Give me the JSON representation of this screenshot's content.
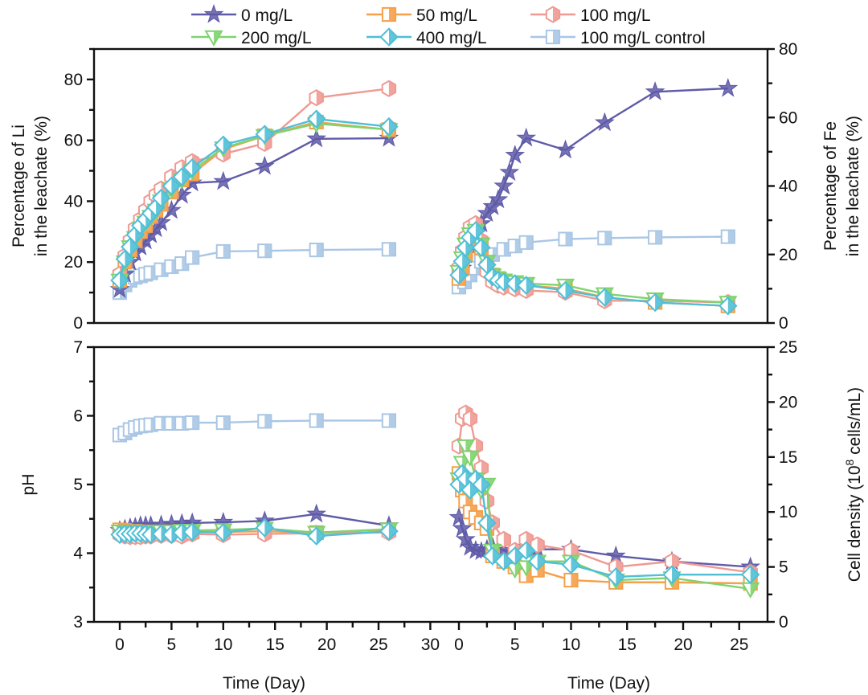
{
  "legend": [
    {
      "name": "0 mg/L",
      "color": "#5F5BA8",
      "marker": "star"
    },
    {
      "name": "50 mg/L",
      "color": "#F5A04A",
      "marker": "square-half"
    },
    {
      "name": "100 mg/L",
      "color": "#EE9A92",
      "marker": "hexagon-half"
    },
    {
      "name": "200 mg/L",
      "color": "#7FD36E",
      "marker": "triangle-down-half"
    },
    {
      "name": "400 mg/L",
      "color": "#4FBFD6",
      "marker": "diamond-half"
    },
    {
      "name": "100 mg/L control",
      "color": "#A9C6E4",
      "marker": "square-half"
    }
  ],
  "chart_data": [
    {
      "id": "li",
      "type": "line",
      "title": "",
      "xlabel": "Time (Day)",
      "ylabel": "Percentage of Li\nin the leachate (%)",
      "xlim": [
        -2.5,
        30
      ],
      "ylim": [
        0,
        90
      ],
      "xticks": [
        0,
        5,
        10,
        15,
        20,
        25,
        30
      ],
      "yticks": [
        0,
        20,
        40,
        60,
        80
      ],
      "y_axis_side": "left",
      "series": [
        {
          "name": "0 mg/L",
          "x": [
            0,
            0.5,
            1,
            1.5,
            2,
            2.5,
            3,
            3.5,
            4,
            5,
            6,
            7,
            10,
            14,
            19,
            26
          ],
          "y": [
            11,
            16,
            20,
            23,
            25,
            27,
            29,
            31,
            33,
            37,
            42,
            46,
            46.5,
            51.5,
            60.5,
            60.7
          ]
        },
        {
          "name": "50 mg/L",
          "x": [
            0,
            0.5,
            1,
            1.5,
            2,
            2.5,
            3,
            3.5,
            4,
            5,
            6,
            7,
            10,
            14,
            19,
            26
          ],
          "y": [
            14,
            20,
            24,
            27,
            30,
            32,
            35,
            37,
            39,
            43,
            47,
            49,
            57,
            61.5,
            66,
            63.5
          ]
        },
        {
          "name": "100 mg/L",
          "x": [
            0,
            0.5,
            1,
            1.5,
            2,
            2.5,
            3,
            3.5,
            4,
            5,
            6,
            7,
            10,
            14,
            19,
            26
          ],
          "y": [
            16,
            22,
            27,
            31,
            34,
            37,
            40,
            42,
            44,
            48,
            51,
            53,
            55.5,
            59,
            74,
            77
          ]
        },
        {
          "name": "200 mg/L",
          "x": [
            0,
            0.5,
            1,
            1.5,
            2,
            2.5,
            3,
            3.5,
            4,
            5,
            6,
            7,
            10,
            14,
            19,
            26
          ],
          "y": [
            14,
            20,
            25,
            28,
            31,
            33,
            35,
            37,
            40,
            44,
            47,
            50,
            57.5,
            61.5,
            65.5,
            63.5
          ]
        },
        {
          "name": "400 mg/L",
          "x": [
            0,
            0.5,
            1,
            1.5,
            2,
            2.5,
            3,
            3.5,
            4,
            5,
            6,
            7,
            10,
            14,
            19,
            26
          ],
          "y": [
            14,
            21,
            25,
            29,
            32,
            34,
            36,
            38,
            41,
            45,
            48,
            51,
            58.5,
            62,
            67,
            64.5
          ]
        },
        {
          "name": "100 mg/L control",
          "x": [
            0,
            0.5,
            1,
            1.5,
            2,
            2.5,
            3,
            4,
            5,
            6,
            7,
            10,
            14,
            19,
            26
          ],
          "y": [
            10,
            12.5,
            14,
            15,
            15.5,
            16,
            16.5,
            17.5,
            18.5,
            19.5,
            21.5,
            23.5,
            23.7,
            24,
            24.2
          ]
        }
      ]
    },
    {
      "id": "fe",
      "type": "line",
      "title": "",
      "xlabel": "Time (Day)",
      "ylabel": "Percentage of Fe\nin the leachate (%)",
      "xlim": [
        -1.2,
        27.5
      ],
      "ylim": [
        0,
        80
      ],
      "xticks": [
        0,
        5,
        10,
        15,
        20,
        25
      ],
      "yticks": [
        0,
        20,
        40,
        60,
        80
      ],
      "y_axis_side": "right",
      "series": [
        {
          "name": "0 mg/L",
          "x": [
            0.3,
            0.6,
            1,
            1.5,
            2,
            2.5,
            3,
            3.5,
            4,
            4.5,
            5,
            6,
            9.5,
            13,
            17.5,
            24
          ],
          "y": [
            16,
            20,
            23,
            26,
            29,
            32,
            34,
            36,
            40,
            44,
            49,
            54,
            50.5,
            58.5,
            67.5,
            68.5
          ]
        },
        {
          "name": "50 mg/L",
          "x": [
            0,
            0.3,
            0.6,
            1,
            1.5,
            2,
            2.5,
            3,
            3.5,
            4,
            5,
            6,
            9.5,
            13,
            17.5,
            24
          ],
          "y": [
            13,
            16,
            20,
            24,
            26,
            22,
            16,
            14,
            13,
            12,
            11.5,
            11,
            10,
            7.5,
            6,
            5
          ]
        },
        {
          "name": "100 mg/L",
          "x": [
            0,
            0.3,
            0.6,
            1,
            1.5,
            2,
            2.5,
            3,
            3.5,
            4,
            5,
            6,
            9.5,
            13,
            17.5,
            24
          ],
          "y": [
            16,
            21,
            25,
            28,
            29,
            24,
            15,
            12,
            11,
            10.5,
            10,
            9.5,
            9,
            6.5,
            6.5,
            6
          ]
        },
        {
          "name": "200 mg/L",
          "x": [
            0,
            0.3,
            0.6,
            1,
            1.5,
            2,
            2.5,
            3,
            3.5,
            4,
            5,
            6,
            9.5,
            13,
            17.5,
            24
          ],
          "y": [
            15,
            19,
            23,
            26,
            27,
            23,
            18,
            14,
            13,
            12.5,
            12,
            11.5,
            11,
            8.5,
            7,
            6
          ]
        },
        {
          "name": "400 mg/L",
          "x": [
            0,
            0.3,
            0.6,
            1,
            1.5,
            2,
            2.5,
            3,
            3.5,
            4,
            5,
            6,
            9.5,
            13,
            17.5,
            24
          ],
          "y": [
            14,
            18,
            22,
            25,
            27,
            22,
            17,
            13.5,
            12.5,
            12,
            11.5,
            11,
            9.5,
            7.5,
            6,
            5
          ]
        },
        {
          "name": "100 mg/L control",
          "x": [
            0,
            0.5,
            1,
            1.5,
            2,
            3,
            4,
            5,
            6,
            9.5,
            13,
            17.5,
            24
          ],
          "y": [
            10.5,
            12,
            14,
            16,
            18,
            20,
            21.5,
            22.5,
            23.5,
            24.5,
            24.8,
            25,
            25.2
          ]
        }
      ]
    },
    {
      "id": "ph",
      "type": "line",
      "title": "",
      "xlabel": "Time (Day)",
      "ylabel": "pH",
      "xlim": [
        -2.5,
        30
      ],
      "ylim": [
        3,
        7
      ],
      "xticks": [
        0,
        5,
        10,
        15,
        20,
        25,
        30
      ],
      "yticks": [
        3,
        4,
        5,
        6,
        7
      ],
      "y_axis_side": "left",
      "series": [
        {
          "name": "0 mg/L",
          "x": [
            0,
            0.5,
            1,
            1.5,
            2,
            2.5,
            3,
            4,
            5,
            6,
            7,
            10,
            14,
            19,
            26
          ],
          "y": [
            4.33,
            4.35,
            4.37,
            4.38,
            4.4,
            4.4,
            4.4,
            4.41,
            4.42,
            4.43,
            4.44,
            4.45,
            4.47,
            4.57,
            4.4
          ]
        },
        {
          "name": "50 mg/L",
          "x": [
            0,
            0.5,
            1,
            1.5,
            2,
            2.5,
            3,
            4,
            5,
            6,
            7,
            10,
            14,
            19,
            26
          ],
          "y": [
            4.34,
            4.33,
            4.32,
            4.32,
            4.31,
            4.31,
            4.3,
            4.31,
            4.31,
            4.3,
            4.31,
            4.31,
            4.32,
            4.3,
            4.34
          ]
        },
        {
          "name": "100 mg/L",
          "x": [
            0,
            0.5,
            1,
            1.5,
            2,
            2.5,
            3,
            4,
            5,
            6,
            7,
            10,
            14,
            19,
            26
          ],
          "y": [
            4.27,
            4.25,
            4.24,
            4.24,
            4.24,
            4.25,
            4.25,
            4.26,
            4.26,
            4.25,
            4.28,
            4.27,
            4.28,
            4.29,
            4.3
          ]
        },
        {
          "name": "200 mg/L",
          "x": [
            0,
            0.5,
            1,
            1.5,
            2,
            2.5,
            3,
            4,
            5,
            6,
            7,
            10,
            14,
            19,
            26
          ],
          "y": [
            4.32,
            4.31,
            4.3,
            4.31,
            4.3,
            4.31,
            4.31,
            4.32,
            4.32,
            4.33,
            4.33,
            4.34,
            4.36,
            4.3,
            4.35
          ]
        },
        {
          "name": "400 mg/L",
          "x": [
            0,
            0.5,
            1,
            1.5,
            2,
            2.5,
            3,
            4,
            5,
            6,
            7,
            10,
            14,
            19,
            26
          ],
          "y": [
            4.27,
            4.28,
            4.28,
            4.29,
            4.29,
            4.28,
            4.27,
            4.28,
            4.27,
            4.3,
            4.31,
            4.3,
            4.37,
            4.25,
            4.32
          ]
        },
        {
          "name": "100 mg/L control",
          "x": [
            0,
            0.5,
            1,
            1.5,
            2,
            2.5,
            3,
            4,
            5,
            6,
            7,
            10,
            14,
            19,
            26
          ],
          "y": [
            5.72,
            5.75,
            5.8,
            5.83,
            5.85,
            5.86,
            5.87,
            5.89,
            5.89,
            5.89,
            5.9,
            5.9,
            5.92,
            5.93,
            5.93
          ]
        }
      ]
    },
    {
      "id": "cell",
      "type": "line",
      "title": "",
      "xlabel": "Time (Day)",
      "ylabel": "Cell density (10^8 cells/mL)",
      "xlim": [
        -1.2,
        27.5
      ],
      "ylim": [
        0,
        25
      ],
      "xticks": [
        0,
        5,
        10,
        15,
        20,
        25
      ],
      "yticks": [
        0,
        5,
        10,
        15,
        20,
        25
      ],
      "y_axis_side": "right",
      "series": [
        {
          "name": "0 mg/L",
          "x": [
            0,
            0.3,
            0.6,
            1,
            1.5,
            2,
            2.5,
            3,
            4,
            5,
            6,
            7,
            10,
            14,
            19,
            26
          ],
          "y": [
            9.5,
            8.5,
            7.5,
            6.8,
            6.5,
            6.4,
            6.6,
            6.8,
            6.5,
            6.3,
            6.8,
            6.6,
            6.6,
            6.0,
            5.5,
            5.0
          ]
        },
        {
          "name": "50 mg/L",
          "x": [
            0,
            0.3,
            0.6,
            1,
            1.5,
            2,
            2.5,
            3,
            4,
            5,
            6,
            7,
            10,
            14,
            19,
            26
          ],
          "y": [
            13.5,
            12,
            11,
            10,
            9.5,
            9,
            8.5,
            6,
            5.5,
            5,
            4.2,
            4.7,
            3.8,
            3.6,
            3.6,
            3.5
          ]
        },
        {
          "name": "100 mg/L",
          "x": [
            0,
            0.3,
            0.6,
            1,
            1.5,
            2,
            2.5,
            3,
            4,
            5,
            6,
            7,
            10,
            14,
            19,
            26
          ],
          "y": [
            16,
            18.5,
            19,
            18.5,
            16,
            14,
            11,
            9,
            7.5,
            6.5,
            7.5,
            7,
            6.5,
            5,
            5.5,
            4.5
          ]
        },
        {
          "name": "200 mg/L",
          "x": [
            0,
            0.3,
            0.6,
            1,
            1.5,
            2,
            2.5,
            3,
            4,
            5,
            6,
            7,
            10,
            14,
            19,
            26
          ],
          "y": [
            13,
            14.5,
            16,
            15,
            13,
            12,
            12.5,
            6.5,
            5.5,
            4.8,
            5.0,
            5.5,
            5.5,
            3.8,
            4.0,
            3.0
          ]
        },
        {
          "name": "400 mg/L",
          "x": [
            0,
            0.3,
            0.6,
            1,
            1.5,
            2,
            2.5,
            3,
            4,
            5,
            6,
            7,
            10,
            14,
            19,
            26
          ],
          "y": [
            12.5,
            13.5,
            13,
            12,
            13,
            12.5,
            9,
            6,
            5.5,
            6.0,
            6.5,
            5.5,
            5.2,
            4.1,
            4.3,
            4.3
          ]
        }
      ]
    }
  ]
}
